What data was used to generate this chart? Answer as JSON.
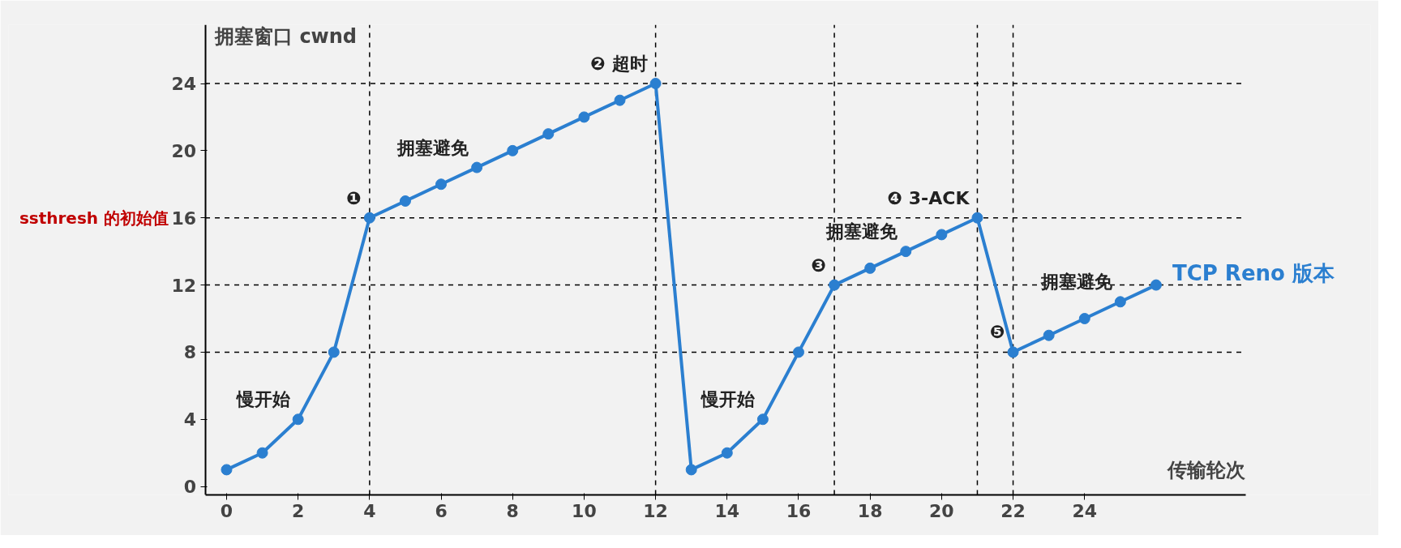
{
  "chart_data": {
    "type": "line",
    "xlabel": "传输轮次",
    "ylabel": "拥塞窗口  cwnd",
    "x": [
      0,
      1,
      2,
      3,
      4,
      5,
      6,
      7,
      8,
      9,
      10,
      11,
      12,
      13,
      14,
      15,
      16,
      17,
      18,
      19,
      20,
      21,
      22,
      23,
      24,
      25,
      26
    ],
    "series": [
      {
        "name": "TCP Reno 版本",
        "color": "#2b7fd0",
        "values": [
          1,
          2,
          4,
          8,
          16,
          17,
          18,
          19,
          20,
          21,
          22,
          23,
          24,
          1,
          2,
          4,
          8,
          12,
          13,
          14,
          15,
          16,
          8,
          9,
          10,
          11,
          12
        ]
      }
    ],
    "xlim": [
      -0.6,
      28.5
    ],
    "ylim": [
      -0.5,
      27.5
    ],
    "xticks": [
      0,
      2,
      4,
      6,
      8,
      10,
      12,
      14,
      16,
      18,
      20,
      22,
      24
    ],
    "yticks": [
      0,
      4,
      8,
      12,
      16,
      20,
      24
    ],
    "marker": "circle",
    "line_style": "solid",
    "grid": false,
    "ref_lines": [
      {
        "axis": "y",
        "value": 24,
        "label": null,
        "color": "#000000",
        "line_style": "dashed"
      },
      {
        "axis": "y",
        "value": 16,
        "label": "ssthresh 的初始值",
        "color": "#000000",
        "line_style": "dashed"
      },
      {
        "axis": "y",
        "value": 12,
        "label": null,
        "color": "#000000",
        "line_style": "dashed"
      },
      {
        "axis": "y",
        "value": 8,
        "label": null,
        "color": "#000000",
        "line_style": "dashed"
      },
      {
        "axis": "x",
        "value": 4,
        "label": null,
        "color": "#000000",
        "line_style": "dashed"
      },
      {
        "axis": "x",
        "value": 12,
        "label": null,
        "color": "#000000",
        "line_style": "dashed"
      },
      {
        "axis": "x",
        "value": 17,
        "label": null,
        "color": "#000000",
        "line_style": "dashed"
      },
      {
        "axis": "x",
        "value": 21,
        "label": null,
        "color": "#000000",
        "line_style": "dashed"
      },
      {
        "axis": "x",
        "value": 22,
        "label": null,
        "color": "#000000",
        "line_style": "dashed"
      }
    ],
    "annotations": [
      {
        "text": "❶",
        "x": 4,
        "y": 16
      },
      {
        "text": "拥塞避免",
        "x": 7,
        "y": 19
      },
      {
        "text": "❷ 超时",
        "x": 12,
        "y": 24
      },
      {
        "text": "慢开始",
        "x": 2,
        "y": 4
      },
      {
        "text": "慢开始",
        "x": 15,
        "y": 4
      },
      {
        "text": "❸",
        "x": 17,
        "y": 12
      },
      {
        "text": "拥塞避免",
        "x": 19,
        "y": 14
      },
      {
        "text": "❹ 3-ACK",
        "x": 21,
        "y": 16
      },
      {
        "text": "❺",
        "x": 22,
        "y": 8
      },
      {
        "text": "拥塞避免",
        "x": 25,
        "y": 11
      }
    ]
  }
}
